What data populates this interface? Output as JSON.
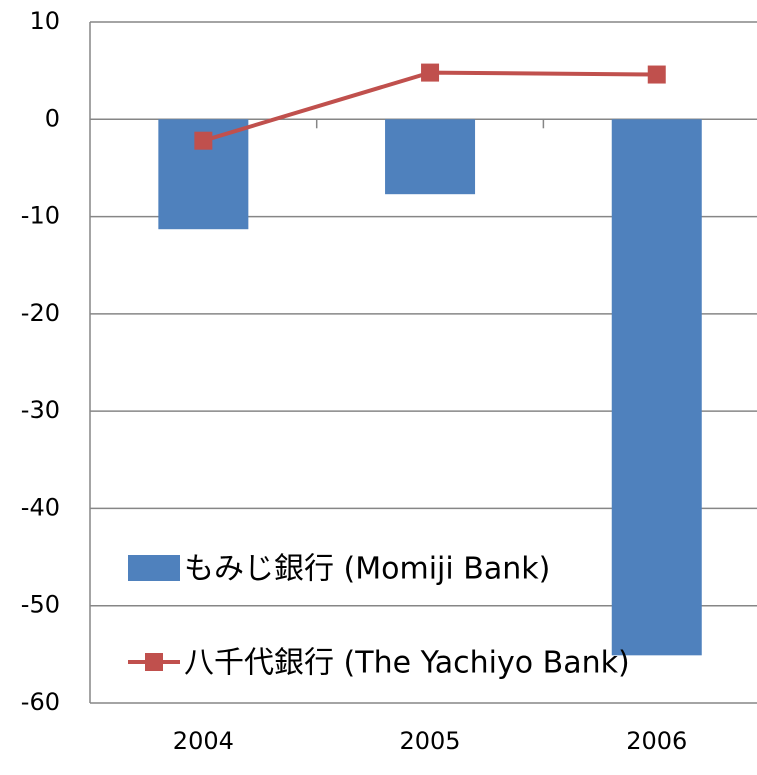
{
  "chart_data": {
    "type": "bar",
    "categories": [
      "2004",
      "2005",
      "2006"
    ],
    "series": [
      {
        "name": "もみじ銀行 (Momiji Bank)",
        "type": "bar",
        "color": "#4f81bd",
        "values": [
          -11.3,
          -7.7,
          -55.1
        ]
      },
      {
        "name": "八千代銀行 (The Yachiyo Bank)",
        "type": "line",
        "color": "#c0504d",
        "values": [
          -2.2,
          4.8,
          4.6
        ]
      }
    ],
    "ylim": [
      -60,
      10
    ],
    "yticks": [
      -60,
      -50,
      -40,
      -30,
      -20,
      -10,
      0,
      10
    ],
    "grid": true,
    "legend": "lower left"
  }
}
